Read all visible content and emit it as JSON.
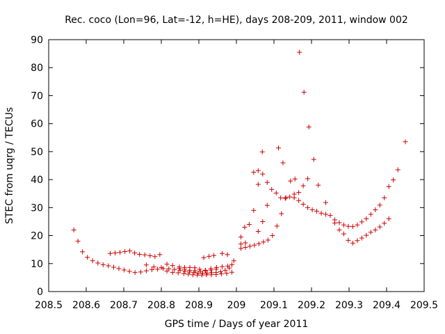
{
  "chart_data": {
    "type": "scatter",
    "title": "Rec. coco (Lon=96, Lat=-12, h=HE), days 208-209, 2011, window 002",
    "xlabel": "GPS time / Days of year 2011",
    "ylabel": "STEC from uqrg / TECUs",
    "xlim": [
      208.5,
      209.5
    ],
    "ylim": [
      0,
      90
    ],
    "x_ticks": [
      208.5,
      208.6,
      208.7,
      208.8,
      208.9,
      209,
      209.1,
      209.2,
      209.3,
      209.4,
      209.5
    ],
    "x_tick_labels": [
      "208.5",
      "208.6",
      "208.7",
      "208.8",
      "208.9",
      "209",
      "209.1",
      "209.2",
      "209.3",
      "209.4",
      "209.5"
    ],
    "y_ticks": [
      0,
      10,
      20,
      30,
      40,
      50,
      60,
      70,
      80,
      90
    ],
    "y_tick_labels": [
      "0",
      "10",
      "20",
      "30",
      "40",
      "50",
      "60",
      "70",
      "80",
      "90"
    ],
    "grid": false,
    "marker": "plus",
    "color": "#cc0000",
    "points": [
      [
        208.567,
        22
      ],
      [
        208.578,
        18
      ],
      [
        208.59,
        14.2
      ],
      [
        208.603,
        12.2
      ],
      [
        208.617,
        11
      ],
      [
        208.631,
        10.2
      ],
      [
        208.645,
        9.6
      ],
      [
        208.659,
        9.2
      ],
      [
        208.673,
        8.7
      ],
      [
        208.687,
        8.2
      ],
      [
        208.701,
        7.7
      ],
      [
        208.715,
        7.2
      ],
      [
        208.73,
        6.8
      ],
      [
        208.745,
        7.0
      ],
      [
        208.76,
        7.4
      ],
      [
        208.775,
        7.8
      ],
      [
        208.79,
        8.0
      ],
      [
        208.805,
        8.2
      ],
      [
        208.82,
        8.1
      ],
      [
        208.835,
        7.9
      ],
      [
        208.85,
        7.6
      ],
      [
        208.863,
        7.3
      ],
      [
        208.875,
        7.0
      ],
      [
        208.887,
        6.8
      ],
      [
        208.898,
        6.6
      ],
      [
        208.91,
        6.6
      ],
      [
        208.922,
        6.6
      ],
      [
        208.934,
        6.7
      ],
      [
        208.946,
        6.8
      ],
      [
        208.958,
        7.1
      ],
      [
        208.97,
        7.6
      ],
      [
        208.981,
        8.4
      ],
      [
        208.988,
        9.6
      ],
      [
        208.993,
        11
      ],
      [
        208.664,
        13.6
      ],
      [
        208.677,
        13.8
      ],
      [
        208.69,
        14.0
      ],
      [
        208.703,
        14.3
      ],
      [
        208.716,
        14.5
      ],
      [
        208.729,
        13.8
      ],
      [
        208.742,
        13.3
      ],
      [
        208.756,
        13.1
      ],
      [
        208.77,
        12.8
      ],
      [
        208.783,
        12.5
      ],
      [
        208.796,
        13.2
      ],
      [
        208.76,
        9.5
      ],
      [
        208.78,
        8.8
      ],
      [
        208.8,
        8.6
      ],
      [
        208.815,
        9.8
      ],
      [
        208.83,
        9.3
      ],
      [
        208.848,
        8.8
      ],
      [
        208.862,
        8.6
      ],
      [
        208.876,
        8.6
      ],
      [
        208.889,
        8.5
      ],
      [
        208.902,
        8.0
      ],
      [
        208.917,
        7.6
      ],
      [
        208.932,
        8.2
      ],
      [
        208.947,
        8.6
      ],
      [
        208.962,
        8.9
      ],
      [
        208.977,
        9.1
      ],
      [
        208.815,
        7.3
      ],
      [
        208.83,
        6.8
      ],
      [
        208.845,
        6.7
      ],
      [
        208.86,
        6.4
      ],
      [
        208.872,
        6.2
      ],
      [
        208.884,
        6.0
      ],
      [
        208.896,
        5.9
      ],
      [
        208.908,
        5.9
      ],
      [
        208.92,
        6.0
      ],
      [
        208.933,
        6.0
      ],
      [
        208.946,
        6.1
      ],
      [
        208.96,
        6.3
      ],
      [
        208.974,
        6.5
      ],
      [
        208.988,
        6.9
      ],
      [
        208.848,
        8.3
      ],
      [
        208.862,
        8.0
      ],
      [
        208.876,
        7.6
      ],
      [
        208.89,
        7.4
      ],
      [
        208.904,
        7.2
      ],
      [
        208.918,
        7.4
      ],
      [
        208.932,
        7.7
      ],
      [
        208.946,
        8.0
      ],
      [
        208.913,
        12.1
      ],
      [
        208.927,
        12.6
      ],
      [
        208.94,
        12.9
      ],
      [
        208.962,
        13.6
      ],
      [
        208.976,
        13.2
      ],
      [
        209.012,
        15.4
      ],
      [
        209.024,
        15.8
      ],
      [
        209.036,
        16.2
      ],
      [
        209.048,
        16.6
      ],
      [
        209.06,
        17.1
      ],
      [
        209.072,
        17.7
      ],
      [
        209.084,
        18.4
      ],
      [
        209.096,
        20.0
      ],
      [
        209.108,
        23.4
      ],
      [
        209.12,
        27.8
      ],
      [
        209.132,
        33.5
      ],
      [
        209.144,
        39.5
      ],
      [
        209.156,
        40.2
      ],
      [
        209.168,
        85.5
      ],
      [
        209.18,
        71.2
      ],
      [
        209.193,
        58.8
      ],
      [
        209.206,
        47.2
      ],
      [
        209.218,
        38.0
      ],
      [
        209.012,
        19.5
      ],
      [
        209.022,
        23.0
      ],
      [
        209.034,
        24.0
      ],
      [
        209.046,
        29.0
      ],
      [
        209.058,
        21.5
      ],
      [
        209.07,
        25.0
      ],
      [
        209.082,
        30.8
      ],
      [
        209.094,
        36.5
      ],
      [
        209.106,
        35.2
      ],
      [
        209.118,
        33.5
      ],
      [
        209.13,
        33.3
      ],
      [
        209.142,
        33.8
      ],
      [
        209.154,
        34.8
      ],
      [
        209.166,
        35.4
      ],
      [
        209.178,
        37.8
      ],
      [
        209.19,
        40.3
      ],
      [
        209.012,
        17.0
      ],
      [
        209.024,
        17.4
      ],
      [
        209.046,
        42.6
      ],
      [
        209.058,
        43.2
      ],
      [
        209.07,
        42.0
      ],
      [
        209.082,
        39.0
      ],
      [
        209.069,
        49.9
      ],
      [
        209.112,
        51.3
      ],
      [
        209.124,
        46.0
      ],
      [
        209.058,
        38.3
      ],
      [
        209.154,
        33.5
      ],
      [
        209.166,
        32.5
      ],
      [
        209.178,
        31.2
      ],
      [
        209.19,
        30.0
      ],
      [
        209.202,
        29.2
      ],
      [
        209.214,
        28.7
      ],
      [
        209.226,
        28.0
      ],
      [
        209.238,
        27.6
      ],
      [
        209.25,
        27.2
      ],
      [
        209.262,
        25.6
      ],
      [
        209.274,
        24.6
      ],
      [
        209.286,
        23.8
      ],
      [
        209.298,
        23.3
      ],
      [
        209.31,
        23.2
      ],
      [
        209.322,
        23.8
      ],
      [
        209.334,
        24.9
      ],
      [
        209.346,
        26.0
      ],
      [
        209.358,
        27.6
      ],
      [
        209.37,
        29.2
      ],
      [
        209.382,
        30.9
      ],
      [
        209.394,
        33.5
      ],
      [
        209.406,
        37.5
      ],
      [
        209.418,
        39.9
      ],
      [
        209.43,
        43.5
      ],
      [
        209.45,
        53.5
      ],
      [
        209.238,
        31.8
      ],
      [
        209.262,
        24.5
      ],
      [
        209.274,
        22.0
      ],
      [
        209.286,
        20.6
      ],
      [
        209.298,
        18.3
      ],
      [
        209.31,
        17.3
      ],
      [
        209.322,
        18.2
      ],
      [
        209.334,
        19.1
      ],
      [
        209.346,
        20.1
      ],
      [
        209.358,
        21.2
      ],
      [
        209.37,
        22.0
      ],
      [
        209.382,
        23.1
      ],
      [
        209.394,
        24.4
      ],
      [
        209.406,
        26.0
      ]
    ]
  }
}
